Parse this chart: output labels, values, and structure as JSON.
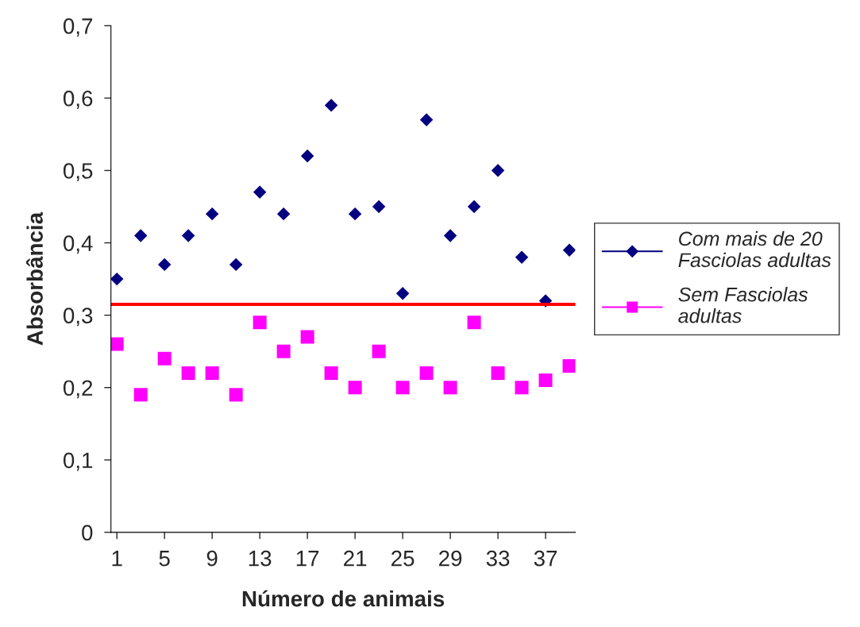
{
  "chart_data": {
    "type": "scatter",
    "xlabel": "Número de animais",
    "ylabel": "Absorbância",
    "x": [
      1,
      3,
      5,
      7,
      9,
      11,
      13,
      15,
      17,
      19,
      21,
      23,
      25,
      27,
      29,
      31,
      33,
      35,
      37,
      39
    ],
    "series": [
      {
        "name": "Com mais de 20 Fasciolas adultas",
        "color": "#000080",
        "marker": "diamond",
        "values": [
          0.35,
          0.41,
          0.37,
          0.41,
          0.44,
          0.37,
          0.47,
          0.44,
          0.52,
          0.59,
          0.44,
          0.45,
          0.33,
          0.57,
          0.41,
          0.45,
          0.5,
          0.38,
          0.32,
          0.39
        ]
      },
      {
        "name": "Sem Fasciolas adultas",
        "color": "#ff00ff",
        "marker": "square",
        "values": [
          0.26,
          0.19,
          0.24,
          0.22,
          0.22,
          0.19,
          0.29,
          0.25,
          0.27,
          0.22,
          0.2,
          0.25,
          0.2,
          0.22,
          0.2,
          0.29,
          0.22,
          0.2,
          0.21,
          0.23
        ]
      }
    ],
    "ref_lines": [
      {
        "axis": "y",
        "value": 0.315,
        "color": "#ff0000",
        "line_style": "solid"
      }
    ],
    "xlim": [
      0.5,
      39.5
    ],
    "xticks": [
      1,
      5,
      9,
      13,
      17,
      21,
      25,
      29,
      33,
      37
    ],
    "ylim": [
      0,
      0.7
    ],
    "yticks": [
      0,
      {
        "value": 0.1,
        "label": "0,1"
      },
      {
        "value": 0.2,
        "label": "0,2"
      },
      {
        "value": 0.3,
        "label": "0,3"
      },
      {
        "value": 0.4,
        "label": "0,4"
      },
      {
        "value": 0.5,
        "label": "0,5"
      },
      {
        "value": 0.6,
        "label": "0,6"
      },
      {
        "value": 0.7,
        "label": "0,7"
      }
    ],
    "grid": false,
    "legend": "right"
  }
}
